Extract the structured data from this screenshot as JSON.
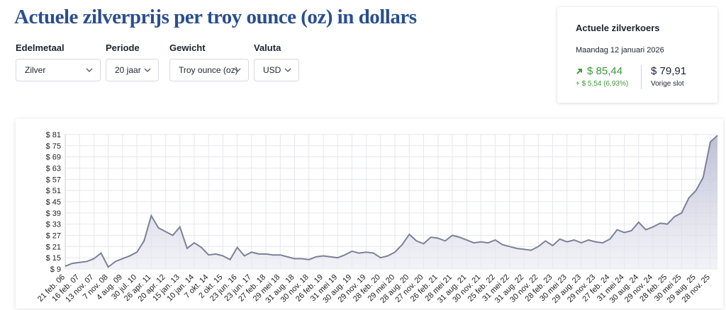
{
  "header": {
    "title": "Actuele zilverprijs per troy ounce (oz) in dollars"
  },
  "filters": [
    {
      "label": "Edelmetaal",
      "value": "Zilver"
    },
    {
      "label": "Periode",
      "value": "20 jaar"
    },
    {
      "label": "Gewicht",
      "value": "Troy ounce (oz)"
    },
    {
      "label": "Valuta",
      "value": "USD"
    }
  ],
  "card": {
    "title": "Actuele zilverkoers",
    "date": "Maandag 12 januari 2026",
    "price": "$ 85,44",
    "change": "+ $ 5,54 (6,93%)",
    "previous": "$ 79,91",
    "previous_label": "Vorige slot"
  },
  "chart_data": {
    "type": "area",
    "color": "#7d8199",
    "fill": "#c9cbdc",
    "grid": true,
    "categories": [
      "21 feb. 06",
      null,
      "16 feb. 07",
      null,
      "13 nov. 07",
      null,
      "7 nov. 08",
      null,
      "4 aug. 09",
      null,
      "30 jul. 10",
      null,
      "26 apr. 11",
      null,
      "20 apr. 12",
      null,
      "15 jan. 13",
      null,
      "10 jan. 14",
      null,
      "7 okt. 14",
      null,
      "2 okt. 15",
      null,
      "23 jun. 16",
      null,
      "23 jun. 17",
      null,
      "27 feb. 18",
      null,
      "29 mei 18",
      null,
      "31 aug. 18",
      null,
      "30 nov. 18",
      null,
      "26 feb. 19",
      null,
      "31 mei 19",
      null,
      "30 aug. 19",
      null,
      "29 nov. 19",
      null,
      "28 feb. 20",
      null,
      "29 mei 20",
      null,
      "28 aug. 20",
      null,
      "27 nov. 20",
      null,
      "26 feb. 21",
      null,
      "28 mei 21",
      null,
      "31 aug. 21",
      null,
      "30 nov. 21",
      null,
      "25 feb. 22",
      null,
      "31 mei 22",
      null,
      "31 aug. 22",
      null,
      "30 nov. 22",
      null,
      "28 feb. 23",
      null,
      "30 mei 23",
      null,
      "29 aug. 23",
      null,
      "29 nov. 23",
      null,
      "27 feb. 24",
      null,
      "31 mei 24",
      null,
      "30 aug. 24",
      null,
      "29 nov. 24",
      null,
      "28 feb. 25",
      null,
      "30 mei 25",
      null,
      "29 aug. 25",
      null,
      "28 nov. 25",
      null
    ],
    "values": [
      10.5,
      12,
      12.5,
      13,
      14.5,
      17.5,
      10,
      13,
      14.5,
      16,
      18,
      24,
      37.5,
      31,
      29,
      27,
      31.5,
      20,
      23,
      20.5,
      16.5,
      17,
      16,
      14,
      20.5,
      16,
      18,
      17,
      17,
      16.5,
      16.5,
      15.5,
      14.5,
      14.5,
      14,
      15.5,
      16,
      15.5,
      15,
      16.5,
      18.5,
      17.5,
      18,
      17.5,
      15,
      16,
      18,
      22,
      27.5,
      24,
      22.5,
      26,
      25.5,
      24,
      27,
      26,
      24.5,
      23,
      23.5,
      23,
      24.5,
      22,
      21,
      20,
      19.5,
      19,
      21,
      24,
      21.5,
      25,
      23.5,
      24.5,
      23,
      24.5,
      23.5,
      23,
      25,
      30,
      28.5,
      29.5,
      34,
      30,
      31.5,
      33.5,
      33,
      37,
      39,
      47,
      51,
      58,
      77,
      80.5
    ],
    "ylim": [
      9,
      81
    ],
    "yticks": [
      {
        "value": 9,
        "label": "$ 9"
      },
      {
        "value": 15,
        "label": "$ 15"
      },
      {
        "value": 21,
        "label": "$ 21"
      },
      {
        "value": 27,
        "label": "$ 27"
      },
      {
        "value": 33,
        "label": "$ 33"
      },
      {
        "value": 39,
        "label": "$ 39"
      },
      {
        "value": 45,
        "label": "$ 45"
      },
      {
        "value": 51,
        "label": "$ 51"
      },
      {
        "value": 57,
        "label": "$ 57"
      },
      {
        "value": 63,
        "label": "$ 63"
      },
      {
        "value": 69,
        "label": "$ 69"
      },
      {
        "value": 75,
        "label": "$ 75"
      },
      {
        "value": 81,
        "label": "$ 81"
      }
    ]
  }
}
